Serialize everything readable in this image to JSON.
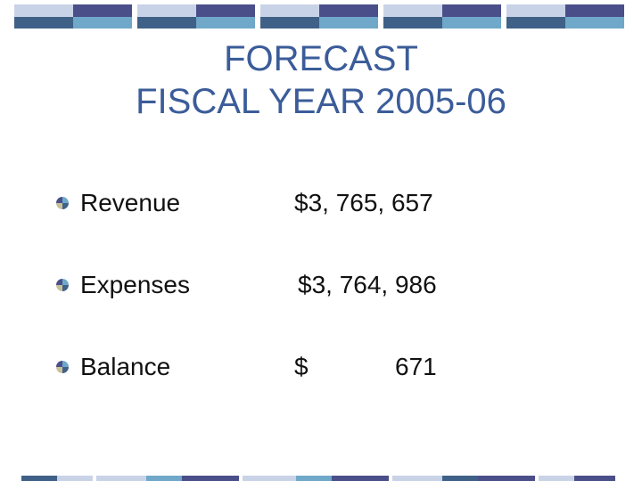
{
  "slide": {
    "title_line1": "FORECAST",
    "title_line2": "FISCAL YEAR 2005-06"
  },
  "items": [
    {
      "label": "Revenue",
      "amount": "$3, 765, 657"
    },
    {
      "label": "Expenses",
      "amount": "$3, 764, 986"
    },
    {
      "label": "Balance",
      "currency": "$",
      "amount": "671"
    }
  ],
  "colors": {
    "title": "#3b5c99",
    "band_light": "#c9d3e7",
    "band_dark": "#4a4f8a",
    "band_steel": "#3f6187",
    "band_sky": "#6fa8c9"
  },
  "icons": {
    "bullet": "pie-bullet-icon"
  }
}
